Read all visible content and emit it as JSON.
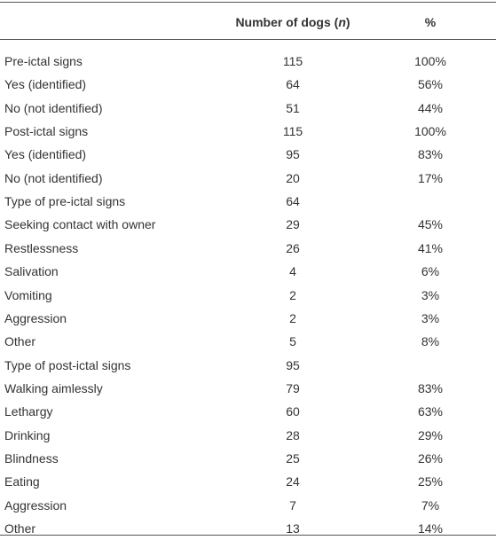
{
  "table": {
    "header": {
      "count": [
        "Number of dogs (",
        "n",
        ")"
      ],
      "percent": "%"
    },
    "rows": [
      [
        "Pre-ictal signs",
        115,
        "100%"
      ],
      [
        "Yes (identified)",
        64,
        "56%"
      ],
      [
        "No (not identified)",
        51,
        "44%"
      ],
      [
        "Post-ictal signs",
        115,
        "100%"
      ],
      [
        "Yes (identified)",
        95,
        "83%"
      ],
      [
        "No (not identified)",
        20,
        "17%"
      ],
      [
        "Type of pre-ictal signs",
        64,
        null
      ],
      [
        "Seeking contact with owner",
        29,
        "45%"
      ],
      [
        "Restlessness",
        26,
        "41%"
      ],
      [
        "Salivation",
        4,
        "6%"
      ],
      [
        "Vomiting",
        2,
        "3%"
      ],
      [
        "Aggression",
        2,
        "3%"
      ],
      [
        "Other",
        5,
        "8%"
      ],
      [
        "Type of post-ictal signs",
        95,
        null
      ],
      [
        "Walking aimlessly",
        79,
        "83%"
      ],
      [
        "Lethargy",
        60,
        "63%"
      ],
      [
        "Drinking",
        28,
        "29%"
      ],
      [
        "Blindness",
        25,
        "26%"
      ],
      [
        "Eating",
        24,
        "25%"
      ],
      [
        "Aggression",
        7,
        "7%"
      ],
      [
        "Other",
        13,
        "14%"
      ]
    ]
  }
}
